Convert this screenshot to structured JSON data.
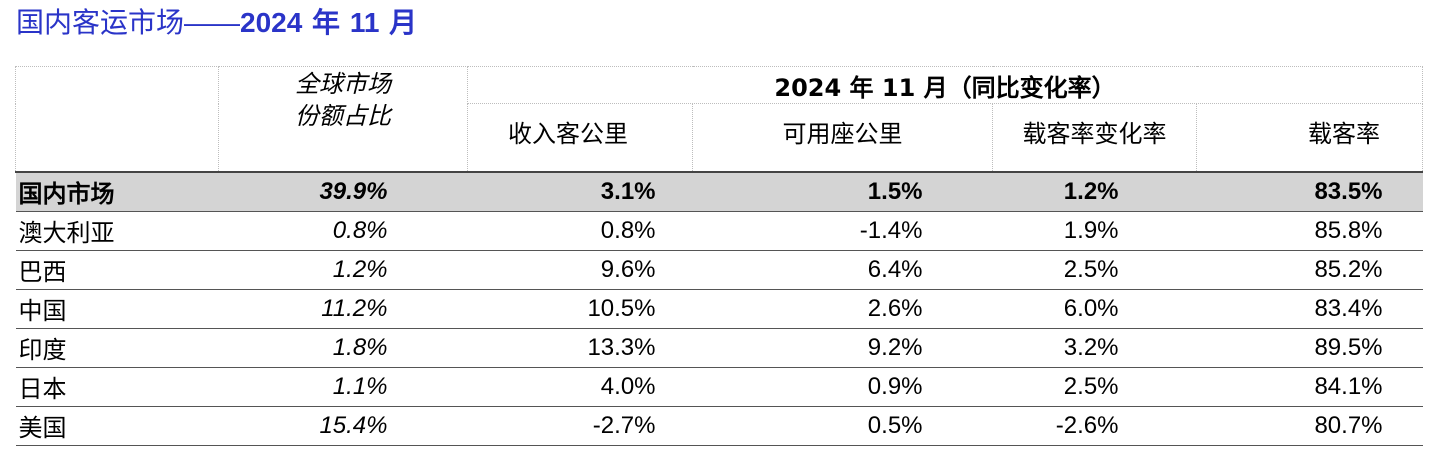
{
  "title": {
    "cn": "国内客运市场",
    "dash": "——",
    "year": "2024",
    "nian": " 年 ",
    "month": "11",
    "yue": " 月"
  },
  "header": {
    "share_line1": "全球市场",
    "share_line2": "份额占比",
    "period": "2024 年 11 月（同比变化率）",
    "columns": [
      "收入客公里",
      "可用座公里",
      "载客率变化率",
      "载客率"
    ]
  },
  "rows": [
    {
      "name": "国内市场",
      "share": "39.9%",
      "rpk": "3.1%",
      "ask": "1.5%",
      "plf_change": "1.2%",
      "plf": "83.5%"
    },
    {
      "name": "澳大利亚",
      "share": "0.8%",
      "rpk": "0.8%",
      "ask": "-1.4%",
      "plf_change": "1.9%",
      "plf": "85.8%"
    },
    {
      "name": "巴西",
      "share": "1.2%",
      "rpk": "9.6%",
      "ask": "6.4%",
      "plf_change": "2.5%",
      "plf": "85.2%"
    },
    {
      "name": "中国",
      "share": "11.2%",
      "rpk": "10.5%",
      "ask": "2.6%",
      "plf_change": "6.0%",
      "plf": "83.4%"
    },
    {
      "name": "印度",
      "share": "1.8%",
      "rpk": "13.3%",
      "ask": "9.2%",
      "plf_change": "3.2%",
      "plf": "89.5%"
    },
    {
      "name": "日本",
      "share": "1.1%",
      "rpk": "4.0%",
      "ask": "0.9%",
      "plf_change": "2.5%",
      "plf": "84.1%"
    },
    {
      "name": "美国",
      "share": "15.4%",
      "rpk": "-2.7%",
      "ask": "0.5%",
      "plf_change": "-2.6%",
      "plf": "80.7%"
    }
  ]
}
